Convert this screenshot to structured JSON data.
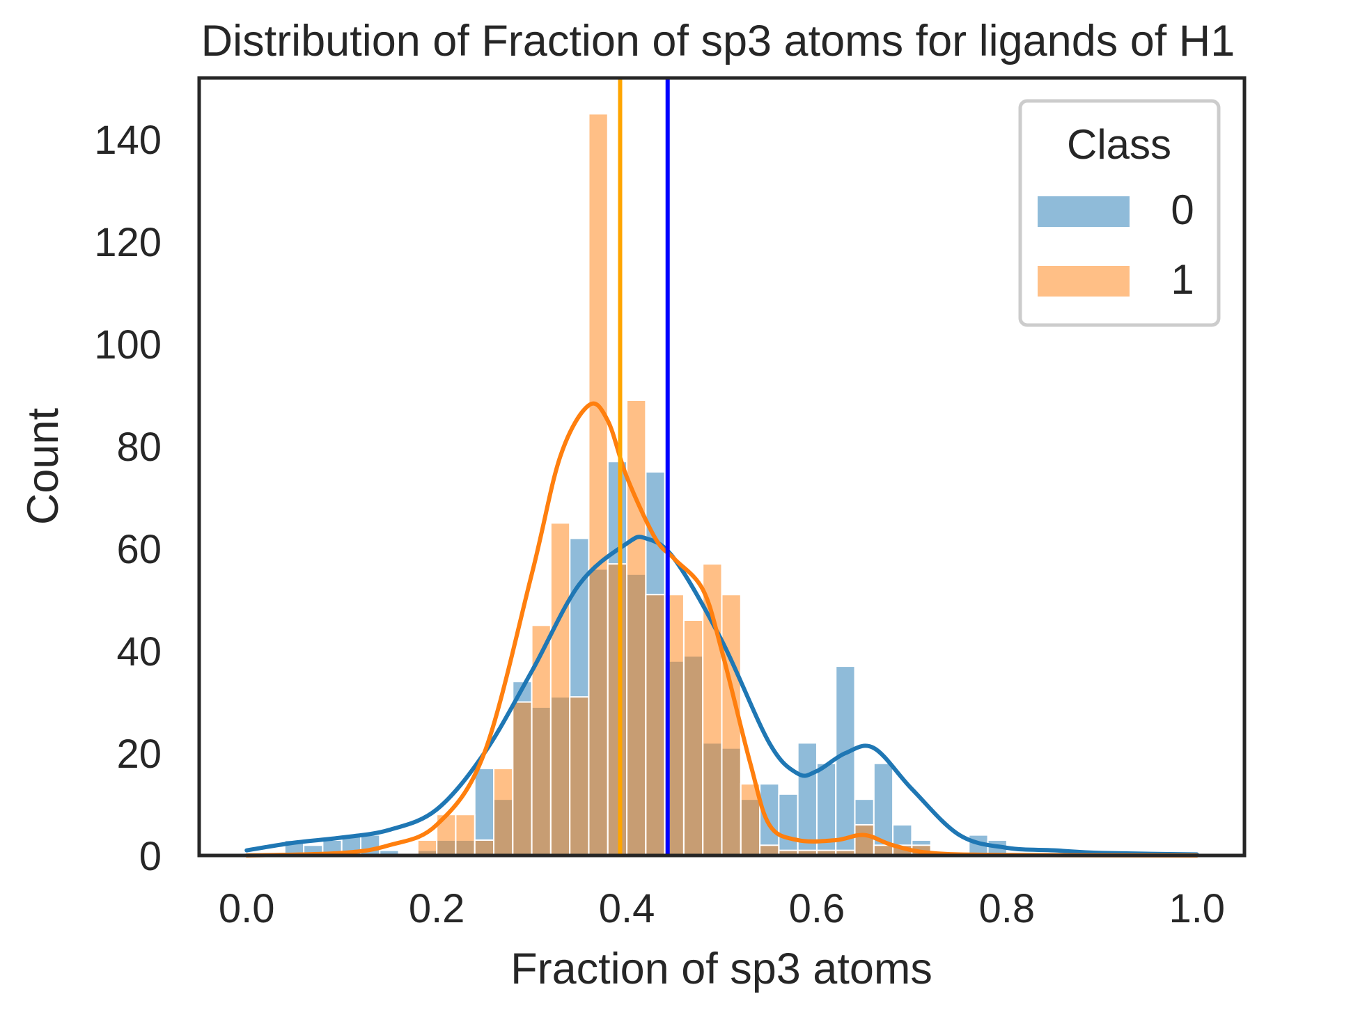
{
  "chart_data": {
    "type": "histogram",
    "title": "Distribution of Fraction of sp3 atoms for ligands of H1",
    "xlabel": "Fraction of sp3 atoms",
    "ylabel": "Count",
    "xlim": [
      -0.05,
      1.05
    ],
    "ylim": [
      0,
      152
    ],
    "xticks": [
      0.0,
      0.2,
      0.4,
      0.6,
      0.8,
      1.0
    ],
    "xtick_labels": [
      "0.0",
      "0.2",
      "0.4",
      "0.6",
      "0.8",
      "1.0"
    ],
    "yticks": [
      0,
      20,
      40,
      60,
      80,
      100,
      120,
      140
    ],
    "ytick_labels": [
      "0",
      "20",
      "40",
      "60",
      "80",
      "100",
      "120",
      "140"
    ],
    "grid": false,
    "bin_width": 0.02,
    "bin_starts": [
      0.04,
      0.06,
      0.08,
      0.1,
      0.12,
      0.14,
      0.16,
      0.18,
      0.2,
      0.22,
      0.24,
      0.26,
      0.28,
      0.3,
      0.32,
      0.34,
      0.36,
      0.38,
      0.4,
      0.42,
      0.44,
      0.46,
      0.48,
      0.5,
      0.52,
      0.54,
      0.56,
      0.58,
      0.6,
      0.62,
      0.64,
      0.66,
      0.68,
      0.7,
      0.72,
      0.74,
      0.76,
      0.78,
      0.8,
      0.82
    ],
    "legend": {
      "title": "Class",
      "position": "upper right",
      "entries": [
        {
          "label": "0",
          "color": "#1f77b4"
        },
        {
          "label": "1",
          "color": "#ff7f0e"
        }
      ]
    },
    "series": [
      {
        "name": "0",
        "color": "#1f77b4",
        "bar_opacity": 0.5,
        "counts": [
          3,
          2,
          3,
          4,
          4,
          1,
          0,
          1,
          3,
          3,
          17,
          11,
          34,
          29,
          31,
          62,
          56,
          77,
          55,
          75,
          38,
          39,
          22,
          21,
          11,
          14,
          12,
          22,
          18,
          37,
          11,
          18,
          6,
          3,
          0,
          0,
          4,
          3,
          0,
          0
        ],
        "kde_x": [
          0.0,
          0.05,
          0.1,
          0.15,
          0.2,
          0.25,
          0.3,
          0.35,
          0.4,
          0.42,
          0.45,
          0.5,
          0.55,
          0.58,
          0.6,
          0.63,
          0.66,
          0.7,
          0.75,
          0.8,
          0.85,
          0.9,
          1.0
        ],
        "kde_y": [
          1,
          2.5,
          3.5,
          5,
          9,
          20,
          36,
          53,
          61,
          62,
          58,
          42,
          22,
          16,
          16.5,
          20,
          21,
          13,
          4,
          1.5,
          1,
          0.5,
          0.2
        ],
        "mean_line": 0.443,
        "mean_line_color": "#0000ff"
      },
      {
        "name": "1",
        "color": "#ff7f0e",
        "bar_opacity": 0.5,
        "counts": [
          0,
          0,
          0,
          0,
          0,
          0,
          0,
          3,
          8,
          8,
          3,
          17,
          30,
          45,
          65,
          31,
          145,
          57,
          89,
          51,
          51,
          46,
          57,
          51,
          14,
          2,
          1,
          1,
          1,
          1,
          6,
          2,
          2,
          2,
          0,
          0,
          0,
          0,
          0,
          0
        ],
        "kde_x": [
          0.0,
          0.1,
          0.15,
          0.2,
          0.25,
          0.3,
          0.33,
          0.36,
          0.38,
          0.4,
          0.43,
          0.45,
          0.48,
          0.5,
          0.53,
          0.55,
          0.58,
          0.62,
          0.65,
          0.68,
          0.72,
          0.8,
          1.0
        ],
        "kde_y": [
          0,
          0.5,
          2,
          6,
          20,
          55,
          78,
          88,
          85,
          74,
          62,
          58,
          52,
          40,
          18,
          6,
          3,
          3,
          4,
          2,
          0.5,
          0.1,
          0
        ],
        "mean_line": 0.393,
        "mean_line_color": "#ffa500"
      }
    ]
  }
}
